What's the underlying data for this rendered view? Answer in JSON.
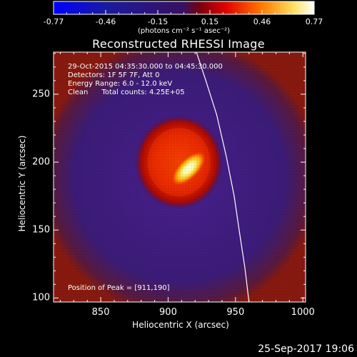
{
  "colorbar": {
    "tick_labels": [
      "-0.77",
      "-0.46",
      "-0.15",
      "0.15",
      "0.46",
      "0.77"
    ],
    "units": "(photons cm⁻² s⁻¹ asec⁻²)",
    "range": [
      -0.77,
      0.77
    ]
  },
  "chart_data": {
    "type": "heatmap",
    "title": "Reconstructed RHESSI Image",
    "xlabel": "Heliocentric X (arcsec)",
    "ylabel": "Heliocentric Y (arcsec)",
    "xlim": [
      815,
      1002
    ],
    "ylim": [
      97,
      281
    ],
    "xticks": [
      850,
      900,
      950,
      1000
    ],
    "yticks": [
      100,
      150,
      200,
      250
    ],
    "x_tick_labels": [
      "850",
      "900",
      "950",
      "1000"
    ],
    "y_tick_labels": [
      "100",
      "150",
      "200",
      "250"
    ],
    "annotations": [
      "29-Oct-2015 04:35:30.000 to 04:45:30.000",
      "Detectors: 1F 5F 7F, Att 0",
      "Energy Range: 6.0 - 12.0 keV",
      "Clean      Total counts: 4.25E+05"
    ],
    "peak_label": "Position of Peak = [911,190]",
    "peak": [
      911,
      190
    ],
    "source_center": [
      908,
      200
    ],
    "limb": [
      [
        921,
        281
      ],
      [
        928,
        260
      ],
      [
        936,
        235
      ],
      [
        943,
        205
      ],
      [
        949,
        175
      ],
      [
        953,
        148
      ],
      [
        957,
        122
      ],
      [
        960,
        97
      ]
    ],
    "colorscale": [
      "#0000ff",
      "#2a0060",
      "#3a1470",
      "#5a2a80",
      "#d01000",
      "#ff8000",
      "#ffff60",
      "#ffffff"
    ]
  },
  "footer": {
    "timestamp": "25-Sep-2017 19:06"
  }
}
